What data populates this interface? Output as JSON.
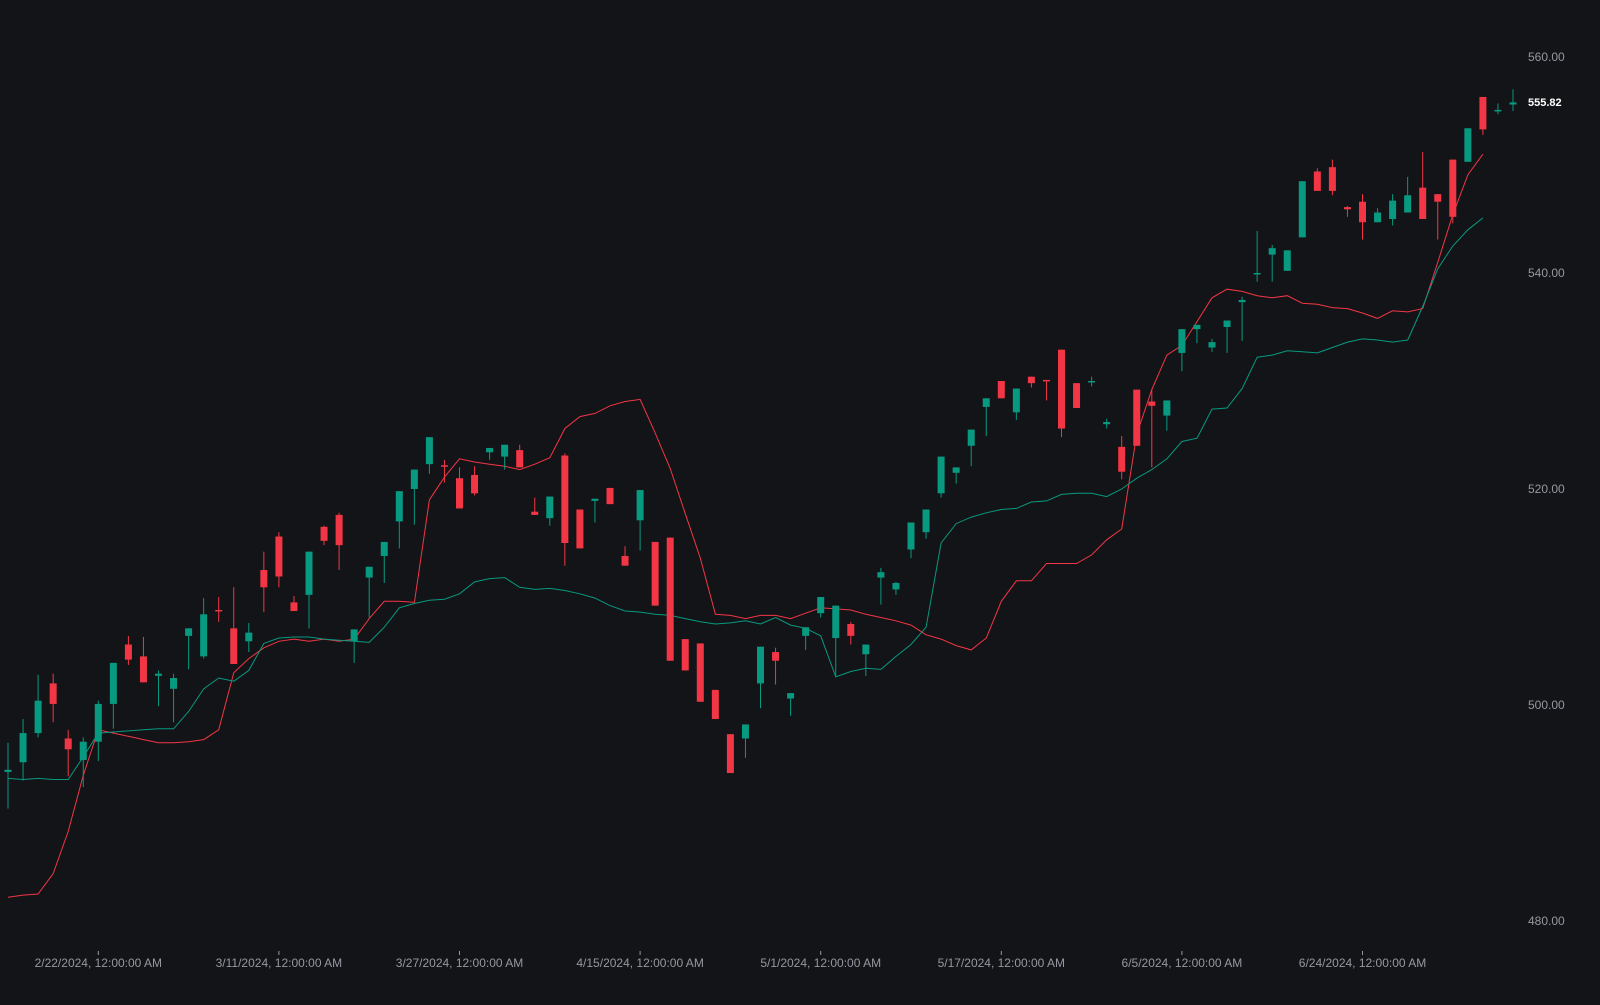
{
  "colors": {
    "background": "#131417",
    "up": "#089981",
    "down": "#f23645",
    "axis_text": "#9598a1",
    "last_price_text": "#ffffff"
  },
  "chart_data": {
    "type": "candlestick",
    "y_axis": {
      "position": "right",
      "ticks": [
        "560.00",
        "540.00",
        "520.00",
        "500.00",
        "480.00"
      ],
      "tick_values": [
        560,
        540,
        520,
        500,
        480
      ],
      "ylim": [
        477.5,
        565.3
      ]
    },
    "x_axis": {
      "tick_labels": [
        "2/22/2024, 12:00:00 AM",
        "3/11/2024, 12:00:00 AM",
        "3/27/2024, 12:00:00 AM",
        "4/15/2024, 12:00:00 AM",
        "5/1/2024, 12:00:00 AM",
        "5/17/2024, 12:00:00 AM",
        "6/5/2024, 12:00:00 AM",
        "6/24/2024, 12:00:00 AM"
      ],
      "tick_bar_index": [
        6,
        18,
        30,
        42,
        54,
        66,
        78,
        90
      ]
    },
    "last_price": "555.82",
    "candles": [
      [
        493.8,
        496.5,
        490.4,
        494.0
      ],
      [
        494.7,
        498.7,
        493.0,
        497.4
      ],
      [
        497.4,
        502.8,
        497.0,
        500.4
      ],
      [
        502.0,
        502.9,
        498.4,
        500.1
      ],
      [
        496.9,
        497.7,
        493.4,
        495.9
      ],
      [
        494.9,
        497.0,
        492.4,
        496.6
      ],
      [
        496.6,
        500.4,
        494.8,
        500.1
      ],
      [
        500.1,
        503.3,
        497.8,
        503.9
      ],
      [
        505.6,
        506.4,
        503.7,
        504.2
      ],
      [
        504.5,
        506.3,
        502.2,
        502.1
      ],
      [
        502.7,
        503.2,
        499.9,
        502.9
      ],
      [
        501.5,
        502.9,
        498.4,
        502.5
      ],
      [
        506.4,
        507.0,
        503.3,
        507.1
      ],
      [
        504.5,
        509.9,
        504.3,
        508.4
      ],
      [
        508.8,
        510.0,
        507.7,
        508.7
      ],
      [
        507.1,
        510.9,
        504.7,
        503.8
      ],
      [
        505.9,
        507.6,
        504.9,
        506.7
      ],
      [
        512.5,
        514.2,
        508.6,
        510.9
      ],
      [
        515.6,
        516.0,
        510.9,
        511.9
      ],
      [
        509.5,
        510.1,
        509.2,
        508.7
      ],
      [
        510.2,
        512.2,
        507.1,
        514.2
      ],
      [
        516.5,
        516.6,
        514.8,
        515.2
      ],
      [
        517.6,
        517.8,
        512.5,
        514.8
      ],
      [
        505.9,
        505.9,
        503.9,
        507.0
      ],
      [
        511.8,
        512.5,
        508.1,
        512.8
      ],
      [
        513.8,
        514.7,
        511.3,
        515.1
      ],
      [
        517.0,
        518.4,
        514.5,
        519.8
      ],
      [
        520.0,
        520.0,
        516.7,
        521.8
      ],
      [
        522.3,
        523.0,
        521.4,
        524.8
      ],
      [
        522.2,
        522.7,
        520.6,
        522.1
      ],
      [
        521.0,
        522.0,
        519.0,
        518.2
      ],
      [
        521.3,
        522.1,
        519.4,
        519.6
      ],
      [
        523.4,
        523.3,
        522.7,
        523.8
      ],
      [
        523.0,
        523.9,
        521.8,
        524.1
      ],
      [
        523.6,
        524.1,
        522.4,
        522.0
      ],
      [
        517.9,
        519.2,
        517.8,
        517.6
      ],
      [
        517.3,
        518.6,
        516.6,
        519.3
      ],
      [
        523.1,
        523.3,
        512.9,
        515.0
      ],
      [
        518.1,
        518.1,
        515.1,
        514.5
      ],
      [
        518.9,
        518.9,
        516.9,
        519.1
      ],
      [
        520.1,
        519.9,
        519.0,
        518.6
      ],
      [
        513.8,
        514.7,
        513.5,
        512.9
      ],
      [
        517.1,
        517.1,
        514.3,
        519.9
      ],
      [
        515.1,
        515.1,
        510.6,
        509.2
      ],
      [
        515.5,
        514.7,
        512.4,
        504.1
      ],
      [
        506.1,
        506.1,
        504.8,
        503.2
      ],
      [
        505.7,
        505.7,
        500.8,
        500.3
      ],
      [
        501.4,
        501.4,
        499.1,
        498.7
      ],
      [
        497.3,
        497.3,
        496.1,
        493.7
      ],
      [
        496.9,
        496.1,
        495.1,
        498.2
      ],
      [
        502.0,
        501.9,
        499.7,
        505.4
      ],
      [
        504.9,
        505.3,
        501.9,
        504.1
      ],
      [
        500.6,
        500.0,
        499.0,
        501.1
      ],
      [
        506.4,
        506.4,
        505.1,
        507.2
      ],
      [
        508.5,
        509.6,
        508.1,
        510.0
      ],
      [
        506.2,
        506.5,
        502.7,
        509.2
      ],
      [
        507.5,
        507.7,
        505.6,
        506.4
      ],
      [
        504.7,
        505.5,
        502.7,
        505.6
      ],
      [
        511.8,
        512.7,
        509.3,
        512.3
      ],
      [
        510.7,
        511.4,
        510.2,
        511.3
      ],
      [
        514.4,
        514.2,
        513.6,
        516.9
      ],
      [
        516.0,
        515.7,
        515.4,
        518.1
      ],
      [
        519.6,
        519.5,
        519.2,
        523.0
      ],
      [
        521.5,
        520.8,
        520.5,
        522.0
      ],
      [
        524.0,
        523.4,
        522.1,
        525.5
      ],
      [
        527.6,
        526.3,
        524.9,
        528.4
      ],
      [
        530.0,
        528.9,
        529.8,
        528.4
      ],
      [
        527.1,
        527.6,
        526.4,
        529.3
      ],
      [
        530.4,
        530.0,
        529.4,
        529.8
      ],
      [
        530.1,
        529.8,
        528.2,
        530.0
      ],
      [
        532.9,
        532.9,
        524.8,
        525.6
      ],
      [
        529.8,
        529.8,
        528.0,
        527.5
      ],
      [
        530.0,
        530.4,
        529.5,
        530.0
      ],
      [
        526.0,
        526.5,
        525.6,
        526.2
      ],
      [
        523.9,
        524.9,
        520.9,
        521.6
      ],
      [
        529.2,
        527.6,
        526.4,
        524.0
      ],
      [
        528.1,
        529.2,
        522.0,
        527.7
      ],
      [
        526.8,
        526.6,
        525.4,
        528.2
      ],
      [
        532.6,
        532.0,
        530.9,
        534.8
      ],
      [
        534.8,
        535.1,
        533.5,
        535.2
      ],
      [
        533.1,
        533.9,
        532.7,
        533.6
      ],
      [
        535.0,
        535.5,
        532.6,
        535.6
      ],
      [
        537.3,
        537.8,
        533.7,
        537.5
      ],
      [
        540.0,
        543.9,
        539.2,
        540.0
      ],
      [
        541.7,
        542.6,
        539.2,
        542.3
      ],
      [
        540.2,
        541.8,
        541.2,
        542.1
      ],
      [
        543.3,
        544.9,
        543.9,
        548.5
      ],
      [
        549.4,
        549.7,
        549.3,
        547.6
      ],
      [
        549.8,
        550.5,
        547.2,
        547.6
      ],
      [
        546.1,
        546.2,
        545.2,
        545.9
      ],
      [
        546.6,
        547.3,
        543.1,
        544.7
      ],
      [
        544.7,
        546.0,
        544.7,
        545.6
      ],
      [
        545.0,
        547.3,
        544.4,
        546.7
      ],
      [
        545.6,
        548.9,
        546.5,
        547.2
      ],
      [
        547.9,
        551.2,
        545.2,
        545.0
      ],
      [
        547.3,
        547.3,
        543.1,
        546.6
      ],
      [
        550.5,
        550.5,
        544.6,
        545.2
      ],
      [
        550.3,
        551.9,
        551.4,
        553.4
      ],
      [
        556.3,
        553.0,
        552.8,
        553.3
      ],
      [
        555.0,
        555.7,
        554.7,
        555.1
      ],
      [
        555.6,
        557.0,
        555.0,
        555.8
      ]
    ],
    "series": [
      {
        "color": "#f23645",
        "values": [
          482.2,
          482.4,
          482.5,
          484.4,
          488.3,
          493.5,
          497.7,
          497.4,
          497.1,
          496.8,
          496.5,
          496.5,
          496.6,
          496.8,
          497.7,
          503.0,
          504.3,
          505.3,
          505.9,
          506.1,
          505.9,
          506.1,
          505.9,
          506.1,
          508.0,
          509.6,
          509.6,
          509.5,
          519.0,
          521.1,
          522.8,
          522.5,
          522.3,
          522.1,
          521.8,
          522.3,
          522.9,
          525.6,
          526.7,
          527.0,
          527.7,
          528.1,
          528.3,
          525.2,
          521.9,
          517.7,
          513.6,
          508.4,
          508.3,
          508.0,
          508.3,
          508.3,
          508.0,
          508.5,
          509.0,
          508.9,
          508.8,
          508.4,
          508.1,
          507.8,
          507.4,
          506.5,
          506.1,
          505.5,
          505.1,
          506.2,
          509.6,
          511.5,
          511.5,
          513.1,
          513.1,
          513.1,
          513.9,
          515.3,
          516.3,
          525.1,
          529.2,
          532.4,
          533.3,
          535.5,
          537.7,
          538.5,
          538.3,
          537.9,
          537.7,
          537.9,
          537.2,
          537.1,
          536.8,
          536.7,
          536.3,
          535.8,
          536.5,
          536.4,
          536.7,
          541.0,
          545.4,
          549.1,
          551.0
        ]
      },
      {
        "color": "#089981",
        "values": [
          493.2,
          493.1,
          493.2,
          493.1,
          493.1,
          495.2,
          497.4,
          497.5,
          497.6,
          497.7,
          497.8,
          497.8,
          499.4,
          501.5,
          502.5,
          502.2,
          503.2,
          505.7,
          506.2,
          506.3,
          506.3,
          506.1,
          506.0,
          505.9,
          505.8,
          507.2,
          509.0,
          509.4,
          509.7,
          509.8,
          510.3,
          511.4,
          511.7,
          511.8,
          510.9,
          510.7,
          510.8,
          510.6,
          510.3,
          509.9,
          509.2,
          508.7,
          508.6,
          508.4,
          508.3,
          508.0,
          507.7,
          507.5,
          507.6,
          507.8,
          507.5,
          508.1,
          507.4,
          507.1,
          506.4,
          502.6,
          503.1,
          503.4,
          503.3,
          504.5,
          505.6,
          507.2,
          515.0,
          516.8,
          517.4,
          517.8,
          518.1,
          518.2,
          518.8,
          518.9,
          519.5,
          519.6,
          519.6,
          519.3,
          520.0,
          521.0,
          521.8,
          522.8,
          524.4,
          524.7,
          527.4,
          527.5,
          529.3,
          532.2,
          532.4,
          532.8,
          532.7,
          532.6,
          533.1,
          533.6,
          533.9,
          533.8,
          533.6,
          533.8,
          536.9,
          540.4,
          542.5,
          544.0,
          545.1
        ]
      }
    ]
  }
}
